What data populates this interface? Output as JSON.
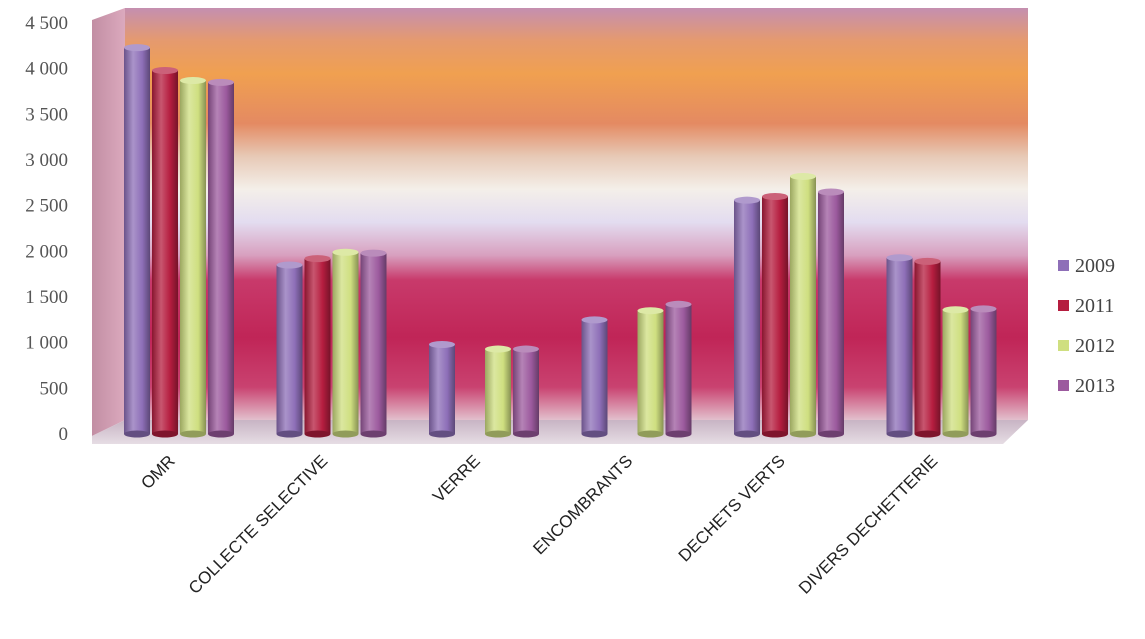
{
  "chart_data": {
    "type": "bar",
    "categories": [
      "OMR",
      "COLLECTE SELECTIVE",
      "VERRE",
      "ENCOMBRANTS",
      "DECHETS VERTS",
      "DIVERS DECHETTERIE"
    ],
    "series": [
      {
        "name": "2009",
        "color": "#8e6fb8",
        "values": [
          4230,
          1850,
          980,
          1250,
          2560,
          1930
        ]
      },
      {
        "name": "2011",
        "color": "#b51d3f",
        "values": [
          3980,
          1920,
          0,
          0,
          2600,
          1890
        ]
      },
      {
        "name": "2012",
        "color": "#cfdf80",
        "values": [
          3870,
          1990,
          930,
          1350,
          2820,
          1360
        ]
      },
      {
        "name": "2013",
        "color": "#9c5a9e",
        "values": [
          3850,
          1980,
          930,
          1420,
          2650,
          1370
        ]
      }
    ],
    "ylim": [
      0,
      4500
    ],
    "yticks": [
      "0",
      "500",
      "1 000",
      "1 500",
      "2 000",
      "2 500",
      "3 000",
      "3 500",
      "4 000",
      "4 500"
    ],
    "legend_position": "right",
    "grid": false
  }
}
